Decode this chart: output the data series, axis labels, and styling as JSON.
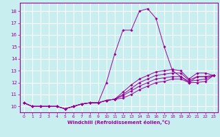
{
  "xlabel": "Windchill (Refroidissement éolien,°C)",
  "bg_color": "#c8eef0",
  "line_color": "#990099",
  "grid_color": "#ffffff",
  "xlim": [
    -0.5,
    23.5
  ],
  "ylim": [
    9.5,
    18.7
  ],
  "xticks": [
    0,
    1,
    2,
    3,
    4,
    5,
    6,
    7,
    8,
    9,
    10,
    11,
    12,
    13,
    14,
    15,
    16,
    17,
    18,
    19,
    20,
    21,
    22,
    23
  ],
  "yticks": [
    10,
    11,
    12,
    13,
    14,
    15,
    16,
    17,
    18
  ],
  "series": [
    [
      10.3,
      10.0,
      10.0,
      10.0,
      10.0,
      9.8,
      10.0,
      10.2,
      10.3,
      10.3,
      12.0,
      14.4,
      16.4,
      16.4,
      18.0,
      18.2,
      17.4,
      15.0,
      13.0,
      12.5,
      12.0,
      12.5,
      12.5,
      12.6
    ],
    [
      10.3,
      10.0,
      10.0,
      10.0,
      10.0,
      9.8,
      10.0,
      10.2,
      10.3,
      10.3,
      10.5,
      10.6,
      11.2,
      11.8,
      12.3,
      12.6,
      12.9,
      13.0,
      13.1,
      13.0,
      12.3,
      12.8,
      12.8,
      12.6
    ],
    [
      10.3,
      10.0,
      10.0,
      10.0,
      10.0,
      9.8,
      10.0,
      10.2,
      10.3,
      10.3,
      10.5,
      10.6,
      11.0,
      11.5,
      12.0,
      12.3,
      12.6,
      12.7,
      12.8,
      12.8,
      12.2,
      12.5,
      12.5,
      12.6
    ],
    [
      10.3,
      10.0,
      10.0,
      10.0,
      10.0,
      9.8,
      10.0,
      10.2,
      10.3,
      10.3,
      10.5,
      10.6,
      10.9,
      11.3,
      11.7,
      12.0,
      12.3,
      12.4,
      12.5,
      12.5,
      12.1,
      12.2,
      12.3,
      12.6
    ],
    [
      10.3,
      10.0,
      10.0,
      10.0,
      10.0,
      9.8,
      10.0,
      10.2,
      10.3,
      10.3,
      10.5,
      10.6,
      10.7,
      11.0,
      11.4,
      11.7,
      12.0,
      12.1,
      12.3,
      12.3,
      12.0,
      12.0,
      12.1,
      12.6
    ]
  ]
}
